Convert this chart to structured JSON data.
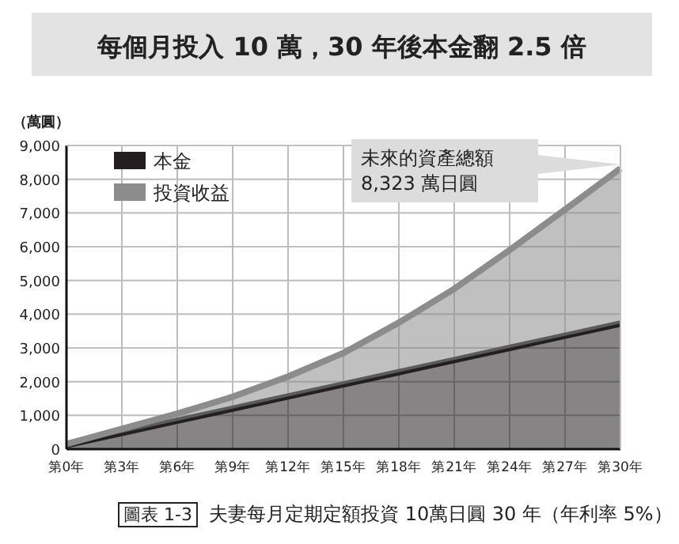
{
  "chart_data": {
    "type": "area",
    "stacked": true,
    "title": "每個月投入 10 萬，30 年後本金翻 2.5 倍",
    "ylabel": "（萬圓）",
    "categories": [
      "第0年",
      "第3年",
      "第6年",
      "第9年",
      "第12年",
      "第15年",
      "第18年",
      "第21年",
      "第24年",
      "第27年",
      "第30年"
    ],
    "series": [
      {
        "name": "本金",
        "color": "#231f20",
        "values": [
          120,
          480,
          840,
          1200,
          1560,
          1920,
          2280,
          2640,
          3000,
          3360,
          3720
        ]
      },
      {
        "name": "投資收益",
        "color": "#8c8c8c",
        "values": [
          30,
          120,
          210,
          350,
          590,
          930,
          1470,
          2110,
          2900,
          3740,
          4600
        ]
      }
    ],
    "ylim": [
      0,
      9000
    ],
    "yticks": [
      0,
      {
        "value": 1000,
        "label": "1,000"
      },
      {
        "value": 2000,
        "label": "2,000"
      },
      {
        "value": 3000,
        "label": "3,000"
      },
      {
        "value": 4000,
        "label": "4,000"
      },
      {
        "value": 5000,
        "label": "5,000"
      },
      {
        "value": 6000,
        "label": "6,000"
      },
      {
        "value": 7000,
        "label": "7,000"
      },
      {
        "value": 8000,
        "label": "8,000"
      },
      {
        "value": 9000,
        "label": "9,000"
      }
    ],
    "grid": true,
    "legend": "top left",
    "annotations": [
      "未來的資產總額\n8,323 萬日圓",
      "圖表 1-3",
      "夫妻每月定期定額投資 10萬日圓 30 年（年利率 5%）"
    ]
  }
}
